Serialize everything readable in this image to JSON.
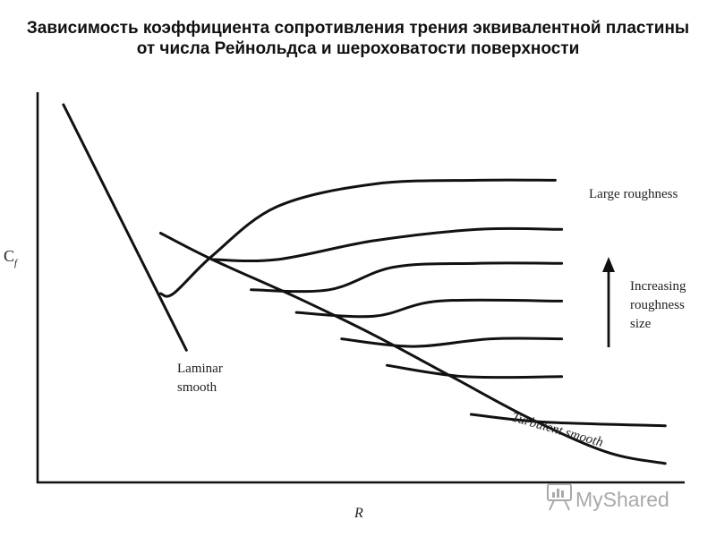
{
  "page": {
    "title_lines": [
      "Зависимость коэффициента сопротивления трения эквивалентной пластины",
      "от числа Рейнольдса и шероховатости поверхности"
    ]
  },
  "chart_data": {
    "type": "line",
    "title": "Зависимость коэффициента сопротивления трения эквивалентной пластины от числа Рейнольдса и шероховатости поверхности",
    "ylabel_main": "C",
    "ylabel_sub": "f",
    "xlabel": "R",
    "xlim": [
      0,
      100
    ],
    "ylim": [
      0,
      100
    ],
    "grid": false,
    "axis_ticks": false,
    "series": [
      {
        "name": "Laminar smooth",
        "x": [
          4,
          23
        ],
        "y": [
          100,
          35
        ]
      },
      {
        "name": "Turbulent smooth",
        "x": [
          19,
          27,
          40,
          52,
          64,
          76,
          88,
          97
        ],
        "y": [
          66,
          59,
          49,
          39,
          28,
          17,
          8,
          5
        ]
      },
      {
        "name": "Large roughness",
        "x": [
          19,
          21,
          27,
          37,
          52,
          68,
          80
        ],
        "y": [
          50,
          50,
          60,
          73,
          79,
          80,
          80
        ]
      },
      {
        "x": [
          27,
          37,
          52,
          68,
          81
        ],
        "y": [
          59,
          59,
          64,
          67,
          67
        ]
      },
      {
        "x": [
          33,
          45,
          55,
          68,
          81
        ],
        "y": [
          51,
          51,
          57,
          58,
          58
        ]
      },
      {
        "x": [
          40,
          52,
          62,
          81
        ],
        "y": [
          45,
          44,
          48,
          48
        ]
      },
      {
        "x": [
          47,
          58,
          70,
          81
        ],
        "y": [
          38,
          36,
          38,
          38
        ]
      },
      {
        "x": [
          54,
          66,
          81
        ],
        "y": [
          31,
          28,
          28
        ]
      },
      {
        "x": [
          67,
          78,
          97
        ],
        "y": [
          18,
          16,
          15
        ]
      }
    ],
    "annotations": {
      "laminar": [
        "Laminar",
        "smooth"
      ],
      "large_roughness": "Large roughness",
      "increasing": [
        "Increasing",
        "roughness",
        "size"
      ],
      "turbulent": "Turbulent smooth"
    }
  },
  "watermark": {
    "text": "MyShared",
    "icon": "presentation-board-icon"
  }
}
